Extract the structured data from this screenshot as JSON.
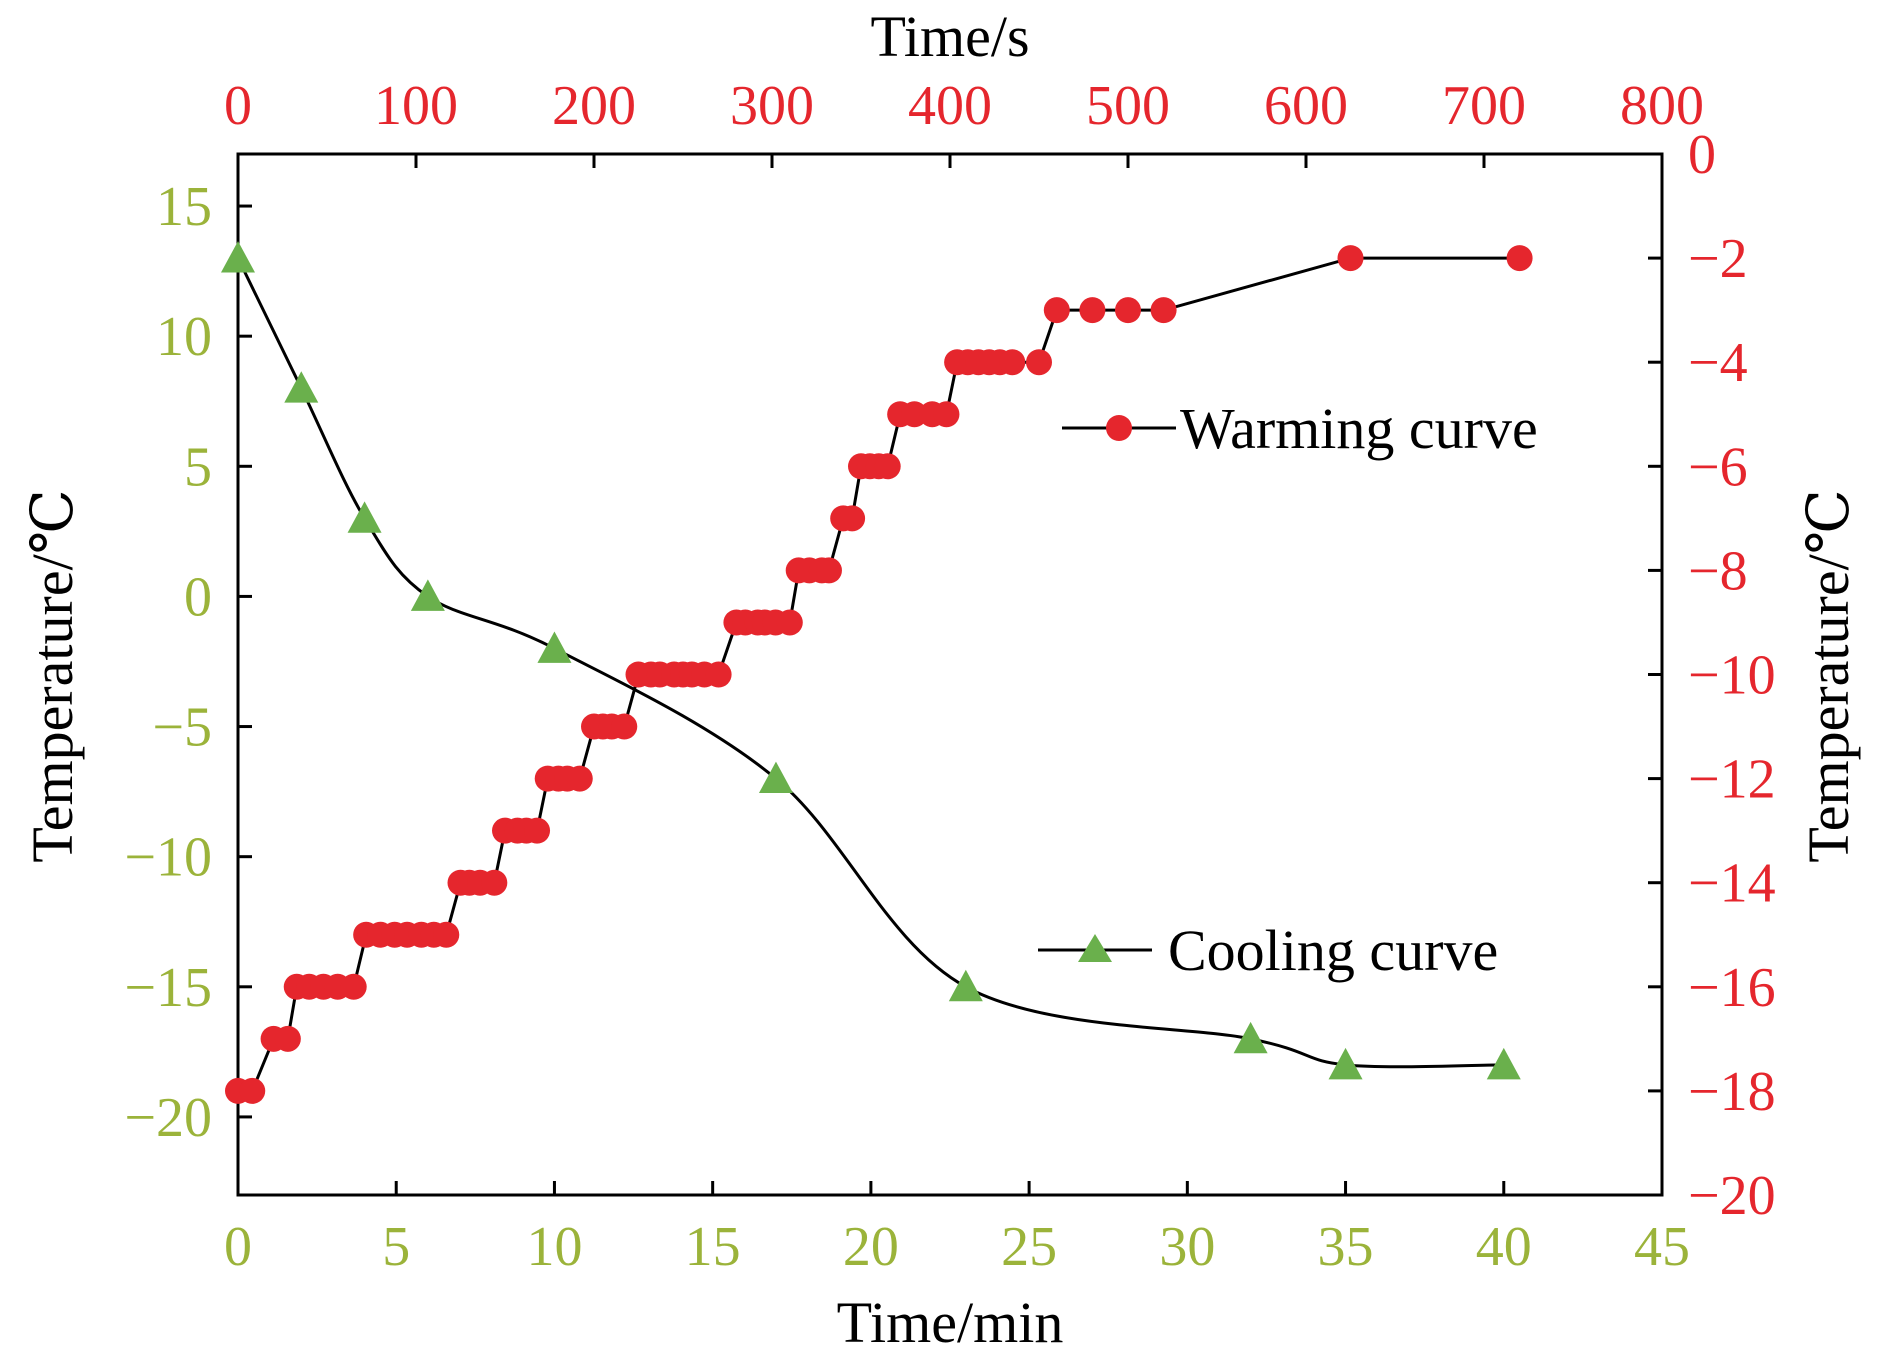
{
  "chart_data": {
    "type": "line",
    "x_bottom": {
      "label": "Time/min",
      "range": [
        0,
        45
      ],
      "ticks": [
        0,
        5,
        10,
        15,
        20,
        25,
        30,
        35,
        40,
        45
      ],
      "tick_color": "#9bb33a"
    },
    "x_top": {
      "label": "Time/s",
      "range": [
        0,
        800
      ],
      "ticks": [
        0,
        100,
        200,
        300,
        400,
        500,
        600,
        700,
        800
      ],
      "tick_color": "#e5262d"
    },
    "y_left": {
      "label": "Temperature/℃",
      "range": [
        -23,
        17
      ],
      "ticks": [
        15,
        10,
        5,
        0,
        -5,
        -10,
        -15,
        -20
      ],
      "tick_color": "#9bb33a"
    },
    "y_right": {
      "label": "Temperature/℃",
      "range": [
        -20,
        0
      ],
      "ticks": [
        0,
        -2,
        -4,
        -6,
        -8,
        -10,
        -12,
        -14,
        -16,
        -18,
        -20
      ],
      "tick_color": "#e5262d"
    },
    "grid": false,
    "series": [
      {
        "name": "Cooling curve",
        "axes": "bottom-left",
        "marker": "triangle",
        "marker_color": "#6ab04c",
        "line_color": "#000000",
        "x": [
          0,
          2,
          4,
          6,
          10,
          17,
          23,
          32,
          35,
          40
        ],
        "y": [
          13,
          8,
          3,
          0,
          -2,
          -7,
          -15,
          -17,
          -18,
          -18
        ]
      },
      {
        "name": "Warming curve",
        "axes": "top-right",
        "marker": "circle",
        "marker_color": "#e5262d",
        "line_color": "#000000",
        "x": [
          0,
          8,
          20,
          28,
          33,
          40,
          48,
          56,
          65,
          72,
          80,
          88,
          95,
          103,
          110,
          117,
          125,
          130,
          136,
          144,
          150,
          157,
          162,
          168,
          174,
          180,
          185,
          192,
          200,
          205,
          210,
          217,
          225,
          232,
          237,
          245,
          250,
          255,
          262,
          270,
          280,
          285,
          292,
          296,
          302,
          310,
          315,
          321,
          328,
          332,
          340,
          345,
          350,
          355,
          360,
          365,
          372,
          380,
          390,
          398,
          404,
          410,
          416,
          422,
          428,
          435,
          450,
          460,
          480,
          500,
          520,
          625,
          720
        ],
        "y": [
          -18,
          -18,
          -17,
          -17,
          -16,
          -16,
          -16,
          -16,
          -16,
          -15,
          -15,
          -15,
          -15,
          -15,
          -15,
          -15,
          -14,
          -14,
          -14,
          -14,
          -13,
          -13,
          -13,
          -13,
          -12,
          -12,
          -12,
          -12,
          -11,
          -11,
          -11,
          -11,
          -10,
          -10,
          -10,
          -10,
          -10,
          -10,
          -10,
          -10,
          -9,
          -9,
          -9,
          -9,
          -9,
          -9,
          -8,
          -8,
          -8,
          -8,
          -7,
          -7,
          -6,
          -6,
          -6,
          -6,
          -5,
          -5,
          -5,
          -5,
          -4,
          -4,
          -4,
          -4,
          -4,
          -4,
          -4,
          -3,
          -3,
          -3,
          -3,
          -2,
          -2
        ]
      }
    ]
  }
}
